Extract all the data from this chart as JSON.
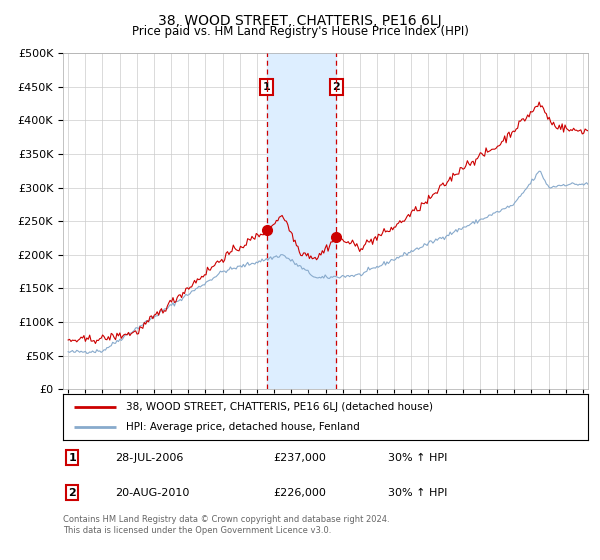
{
  "title": "38, WOOD STREET, CHATTERIS, PE16 6LJ",
  "subtitle": "Price paid vs. HM Land Registry's House Price Index (HPI)",
  "legend_line1": "38, WOOD STREET, CHATTERIS, PE16 6LJ (detached house)",
  "legend_line2": "HPI: Average price, detached house, Fenland",
  "transaction1_date": "28-JUL-2006",
  "transaction1_price": 237000,
  "transaction1_label": "1",
  "transaction1_hpi": "30% ↑ HPI",
  "transaction2_date": "20-AUG-2010",
  "transaction2_price": 226000,
  "transaction2_label": "2",
  "transaction2_hpi": "30% ↑ HPI",
  "footer": "Contains HM Land Registry data © Crown copyright and database right 2024.\nThis data is licensed under the Open Government Licence v3.0.",
  "red_color": "#cc0000",
  "blue_color": "#88aacc",
  "highlight_color": "#ddeeff",
  "grid_color": "#cccccc",
  "ylim": [
    0,
    500000
  ],
  "yticks": [
    0,
    50000,
    100000,
    150000,
    200000,
    250000,
    300000,
    350000,
    400000,
    450000,
    500000
  ],
  "xstart": 1995,
  "xend": 2025,
  "transaction1_x": 2006.57,
  "transaction2_x": 2010.63
}
